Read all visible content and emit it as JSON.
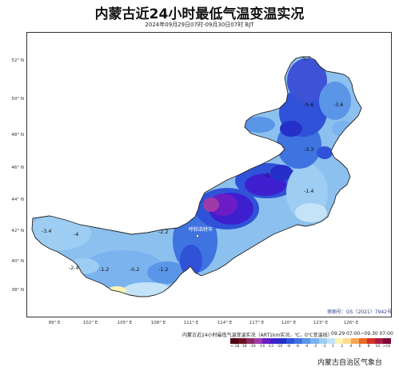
{
  "title": "内蒙古近24小时最低气温变温实况",
  "subtitle": "2024年09月29日07时-09月30日07时 BJT",
  "latitude_ticks": [
    "52° N",
    "50° N",
    "48° N",
    "46° N",
    "44° N",
    "42° N",
    "40° N",
    "38° N"
  ],
  "longitude_ticks": [
    "99° E",
    "102° E",
    "105° E",
    "108° E",
    "111° E",
    "114° E",
    "117° E",
    "120° E",
    "123° E",
    "126° E"
  ],
  "station_values": [
    {
      "v": "-5.7"
    },
    {
      "v": "-5.6"
    },
    {
      "v": "-3.6"
    },
    {
      "v": "-3.3"
    },
    {
      "v": "-1.4"
    },
    {
      "v": "-3.4"
    },
    {
      "v": "-4"
    },
    {
      "v": "-2.2"
    },
    {
      "v": "-2.4"
    },
    {
      "v": "-1.2"
    },
    {
      "v": "-0.2"
    },
    {
      "v": "-1.2"
    },
    {
      "v": "-2"
    }
  ],
  "city_label": "呼和浩特市",
  "approval": "审图号：GS（2021）7942号",
  "legend": {
    "title": "内蒙古近24小时最低气温变温实况（ART1km实况，℃，0℃变温线）",
    "time": "09.29 07:00~09.30 07:00",
    "colors": [
      "#4a0010",
      "#6b1020",
      "#8c2a5e",
      "#a03aa8",
      "#6c1cc4",
      "#3e1fd0",
      "#2430c8",
      "#2f52d8",
      "#3f73e0",
      "#5b95e8",
      "#7ab3ee",
      "#9dcdf2",
      "#c4e3f6",
      "#fff4b0",
      "#ffd98c",
      "#f6a552",
      "#ea6a2a",
      "#d5322a",
      "#a81c48",
      "#7a0a36"
    ],
    "ticks": [
      "<-18",
      "-18",
      "-16",
      "-14",
      "-12",
      "-10",
      "-8",
      "-6",
      "-4",
      "-2",
      "-1",
      "1",
      "2",
      "4",
      "6",
      "8",
      "10",
      ">10"
    ]
  },
  "agency": "内蒙古自治区气象台"
}
